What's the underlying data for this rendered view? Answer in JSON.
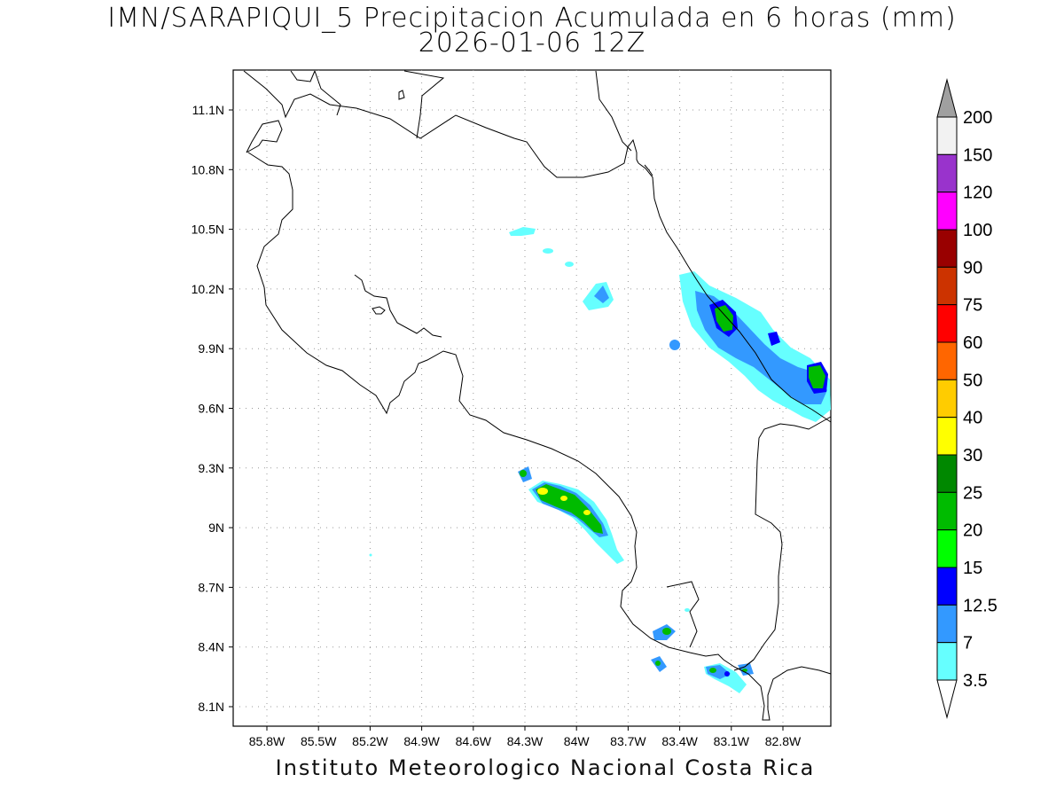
{
  "title_line1": "IMN/SARAPIQUI_5 Precipitacion Acumulada en 6 horas (mm)",
  "title_line2": "2026-01-06 12Z",
  "footer": "Instituto Meteorologico Nacional Costa Rica",
  "map": {
    "lon_ticks": [
      "85.8W",
      "85.5W",
      "85.2W",
      "84.9W",
      "84.6W",
      "84.3W",
      "84W",
      "83.7W",
      "83.4W",
      "83.1W",
      "82.8W"
    ],
    "lat_ticks": [
      "11.1N",
      "10.8N",
      "10.5N",
      "10.2N",
      "9.9N",
      "9.6N",
      "9.3N",
      "9N",
      "8.7N",
      "8.4N",
      "8.1N"
    ],
    "grid": true
  },
  "colorbar": {
    "labels": [
      "200",
      "150",
      "120",
      "100",
      "90",
      "75",
      "60",
      "50",
      "40",
      "30",
      "25",
      "20",
      "15",
      "12.5",
      "7",
      "3.5"
    ],
    "colors": [
      "#f2f2f2",
      "#9933cc",
      "#ff00ff",
      "#990000",
      "#cc3300",
      "#ff0000",
      "#ff6600",
      "#ffcc00",
      "#ffff00",
      "#008800",
      "#00bb00",
      "#00ff00",
      "#0000ff",
      "#3399ff",
      "#66ffff"
    ],
    "top_cap_color": "#a0a0a0",
    "bottom_cap_color": "#ffffff"
  }
}
